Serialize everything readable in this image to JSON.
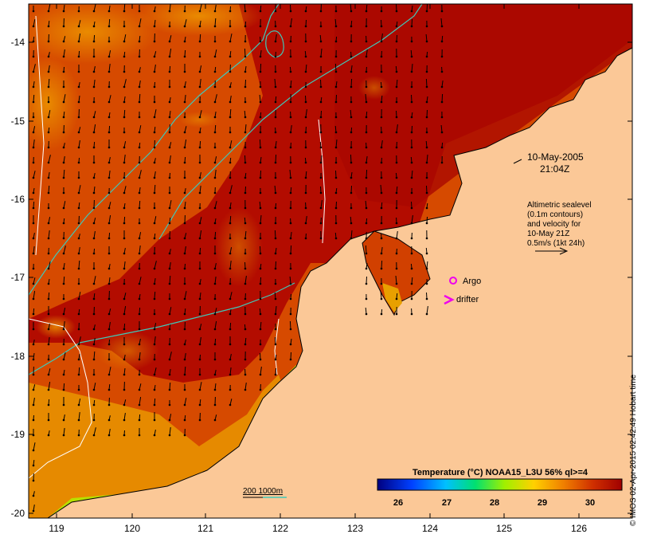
{
  "map": {
    "date": "10-May-2005",
    "time": "21:04Z",
    "lat_ticks": [
      "-14",
      "-15",
      "-16",
      "-17",
      "-18",
      "-19",
      "-20"
    ],
    "lon_ticks": [
      "119",
      "120",
      "121",
      "122",
      "123",
      "124",
      "125",
      "126"
    ],
    "altimetry_note": [
      "Altimetric sealevel",
      "(0.1m contours)",
      "and velocity for",
      "10-May 21Z",
      "0.5m/s (1kt 24h)"
    ],
    "argo_label": "Argo",
    "drifter_label": "drifter",
    "isobath_label": "200  1000m",
    "colorbar": {
      "title": "Temperature (°C) NOAA15_L3U 56% ql>=4",
      "ticks": [
        "26",
        "27",
        "28",
        "29",
        "30"
      ]
    },
    "credit": "© IMOS 02-Apr-2015 02:42:49 Hobart time"
  },
  "colors": {
    "land": "#fbc897",
    "sst_warm": "#b80a00",
    "sst_mid": "#d94b00",
    "sst_cool": "#f0a000",
    "contour_200": "#40c8b8",
    "marker": "#ee00ee"
  }
}
